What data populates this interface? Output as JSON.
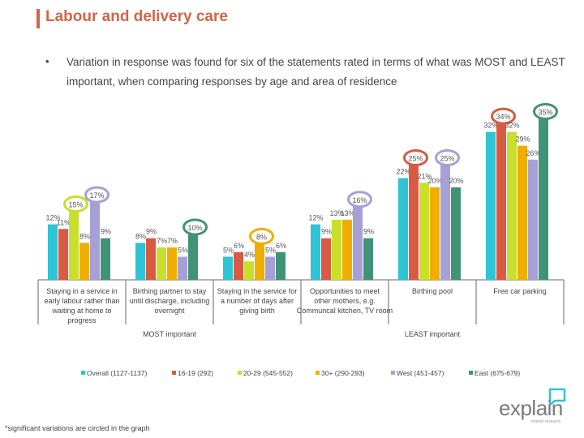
{
  "header": {
    "title": "Labour and delivery care"
  },
  "intro": {
    "bullet": "•",
    "text": "Variation in response was found for six of the statements rated in terms of what was MOST and LEAST important, when comparing responses by age and area of residence"
  },
  "chart_data": {
    "type": "bar",
    "categories": [
      "Staying in a service in early labour rather than waiting at home to progress",
      "Birthing partner to stay until discharge, including overnight",
      "Staying in the service for a number of days after giving birth",
      "Opportunities to meet other mothers, e.g. Communcal kitchen, TV room",
      "Birthing pool",
      "Free car parking"
    ],
    "category_groups": [
      {
        "label": "MOST important",
        "categories": [
          0,
          1,
          2
        ]
      },
      {
        "label": "LEAST important",
        "categories": [
          3,
          4,
          5
        ]
      }
    ],
    "series": [
      {
        "name": "Overall (1127-1137)",
        "color": "#2ec4d6",
        "values": [
          12,
          8,
          5,
          12,
          22,
          32
        ]
      },
      {
        "name": "16-19 (292)",
        "color": "#d95a43",
        "values": [
          11,
          9,
          6,
          9,
          25,
          34
        ]
      },
      {
        "name": "20-29 (545-552)",
        "color": "#c9df2b",
        "values": [
          15,
          7,
          4,
          13,
          21,
          32
        ]
      },
      {
        "name": "30+ (290-293)",
        "color": "#f0ae00",
        "values": [
          8,
          7,
          8,
          13,
          20,
          29
        ]
      },
      {
        "name": "West (451-457)",
        "color": "#a7a0d6",
        "values": [
          17,
          5,
          5,
          16,
          25,
          26
        ]
      },
      {
        "name": "East (675-679)",
        "color": "#3f9477",
        "values": [
          9,
          10,
          6,
          9,
          20,
          35
        ]
      }
    ],
    "circled": [
      [
        0,
        2
      ],
      [
        0,
        4
      ],
      [
        1,
        5
      ],
      [
        2,
        3
      ],
      [
        3,
        4
      ],
      [
        4,
        1
      ],
      [
        4,
        4
      ],
      [
        5,
        1
      ],
      [
        5,
        5
      ]
    ],
    "value_suffix": "%",
    "legend_position": "bottom",
    "grid": false
  },
  "footnote": "*significant variations are circled in the graph",
  "logo": {
    "text": "explain",
    "tagline": "market research"
  }
}
